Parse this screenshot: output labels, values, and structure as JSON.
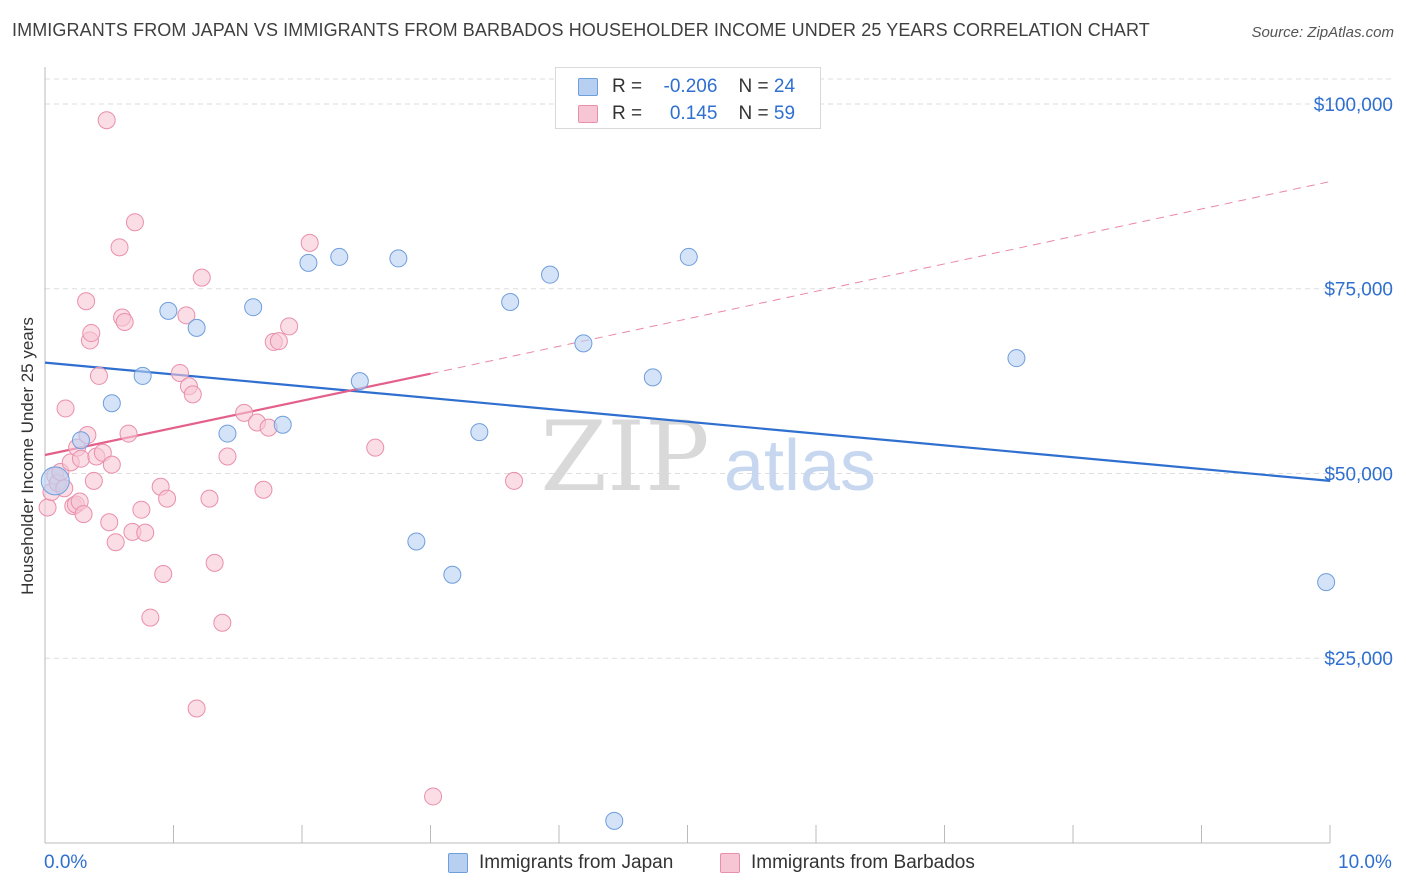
{
  "title": "IMMIGRANTS FROM JAPAN VS IMMIGRANTS FROM BARBADOS HOUSEHOLDER INCOME UNDER 25 YEARS CORRELATION CHART",
  "source": "Source: ZipAtlas.com",
  "legend": {
    "japan": {
      "r_label": "R =",
      "r_value": "-0.206",
      "n_label": "N =",
      "n_value": "24"
    },
    "barbados": {
      "r_label": "R =",
      "r_value": "0.145",
      "n_label": "N =",
      "n_value": "59"
    }
  },
  "colors": {
    "japan_fill": "#b7d0f1",
    "japan_stroke": "#6f9edc",
    "japan_line": "#2f6fd0",
    "barbados_fill": "#f7c6d4",
    "barbados_stroke": "#ea8fab",
    "barbados_line": "#e4608a",
    "axis_text": "#2f6fd0",
    "grid": "#dddddd"
  },
  "chart_data": {
    "type": "scatter",
    "title": "IMMIGRANTS FROM JAPAN VS IMMIGRANTS FROM BARBADOS HOUSEHOLDER INCOME UNDER 25 YEARS CORRELATION CHART",
    "xlabel": "",
    "ylabel": "Householder Income Under 25 years",
    "xlim": [
      0.0,
      10.0
    ],
    "ylim": [
      0,
      105000
    ],
    "x_tick_labels": [
      "0.0%",
      "10.0%"
    ],
    "y_ticks": [
      25000,
      50000,
      75000,
      100000
    ],
    "y_tick_labels": [
      "$25,000",
      "$50,000",
      "$75,000",
      "$100,000"
    ],
    "watermark": {
      "zip": "ZIP",
      "atlas": "atlas"
    },
    "series": [
      {
        "name": "Immigrants from Japan",
        "points": [
          [
            0.08,
            49000
          ],
          [
            0.28,
            54500
          ],
          [
            0.52,
            59500
          ],
          [
            0.76,
            63200
          ],
          [
            0.96,
            72000
          ],
          [
            1.18,
            69700
          ],
          [
            1.42,
            55400
          ],
          [
            1.62,
            72500
          ],
          [
            1.85,
            56600
          ],
          [
            2.05,
            78500
          ],
          [
            2.29,
            79300
          ],
          [
            2.45,
            62500
          ],
          [
            2.75,
            79100
          ],
          [
            2.89,
            40800
          ],
          [
            3.17,
            36300
          ],
          [
            3.38,
            55600
          ],
          [
            3.62,
            73200
          ],
          [
            3.93,
            76900
          ],
          [
            4.19,
            67600
          ],
          [
            4.43,
            3000
          ],
          [
            4.73,
            63000
          ],
          [
            5.01,
            79300
          ],
          [
            7.56,
            65600
          ],
          [
            9.97,
            35300
          ]
        ],
        "trend": {
          "x": [
            0.0,
            10.0
          ],
          "y": [
            65000,
            49000
          ]
        }
      },
      {
        "name": "Immigrants from Barbados",
        "points": [
          [
            0.02,
            45400
          ],
          [
            0.05,
            47500
          ],
          [
            0.08,
            49700
          ],
          [
            0.1,
            48700
          ],
          [
            0.12,
            50200
          ],
          [
            0.15,
            48000
          ],
          [
            0.16,
            58800
          ],
          [
            0.2,
            51500
          ],
          [
            0.22,
            45600
          ],
          [
            0.24,
            45800
          ],
          [
            0.25,
            53500
          ],
          [
            0.27,
            46200
          ],
          [
            0.28,
            52000
          ],
          [
            0.3,
            44500
          ],
          [
            0.32,
            73300
          ],
          [
            0.33,
            55200
          ],
          [
            0.35,
            68000
          ],
          [
            0.36,
            69000
          ],
          [
            0.38,
            49000
          ],
          [
            0.4,
            52300
          ],
          [
            0.42,
            63200
          ],
          [
            0.45,
            52800
          ],
          [
            0.48,
            97800
          ],
          [
            0.5,
            43400
          ],
          [
            0.52,
            51200
          ],
          [
            0.55,
            40700
          ],
          [
            0.58,
            80600
          ],
          [
            0.6,
            71100
          ],
          [
            0.62,
            70500
          ],
          [
            0.65,
            55400
          ],
          [
            0.68,
            42100
          ],
          [
            0.7,
            84000
          ],
          [
            0.75,
            45100
          ],
          [
            0.78,
            42000
          ],
          [
            0.82,
            30500
          ],
          [
            0.9,
            48200
          ],
          [
            0.92,
            36400
          ],
          [
            0.95,
            46600
          ],
          [
            1.05,
            63600
          ],
          [
            1.1,
            71400
          ],
          [
            1.12,
            61800
          ],
          [
            1.15,
            60700
          ],
          [
            1.18,
            18200
          ],
          [
            1.22,
            76500
          ],
          [
            1.28,
            46600
          ],
          [
            1.32,
            37900
          ],
          [
            1.38,
            29800
          ],
          [
            1.42,
            52300
          ],
          [
            1.55,
            58200
          ],
          [
            1.65,
            56900
          ],
          [
            1.7,
            47800
          ],
          [
            1.74,
            56200
          ],
          [
            1.78,
            67800
          ],
          [
            1.82,
            67900
          ],
          [
            1.9,
            69900
          ],
          [
            2.06,
            81200
          ],
          [
            2.57,
            53500
          ],
          [
            3.02,
            6300
          ],
          [
            3.65,
            49000
          ]
        ],
        "trend": {
          "x": [
            0.0,
            3.0
          ],
          "y": [
            52500,
            63500
          ]
        },
        "trend_extension": {
          "x": [
            3.0,
            10.0
          ],
          "y": [
            63500,
            89500
          ]
        }
      }
    ]
  }
}
